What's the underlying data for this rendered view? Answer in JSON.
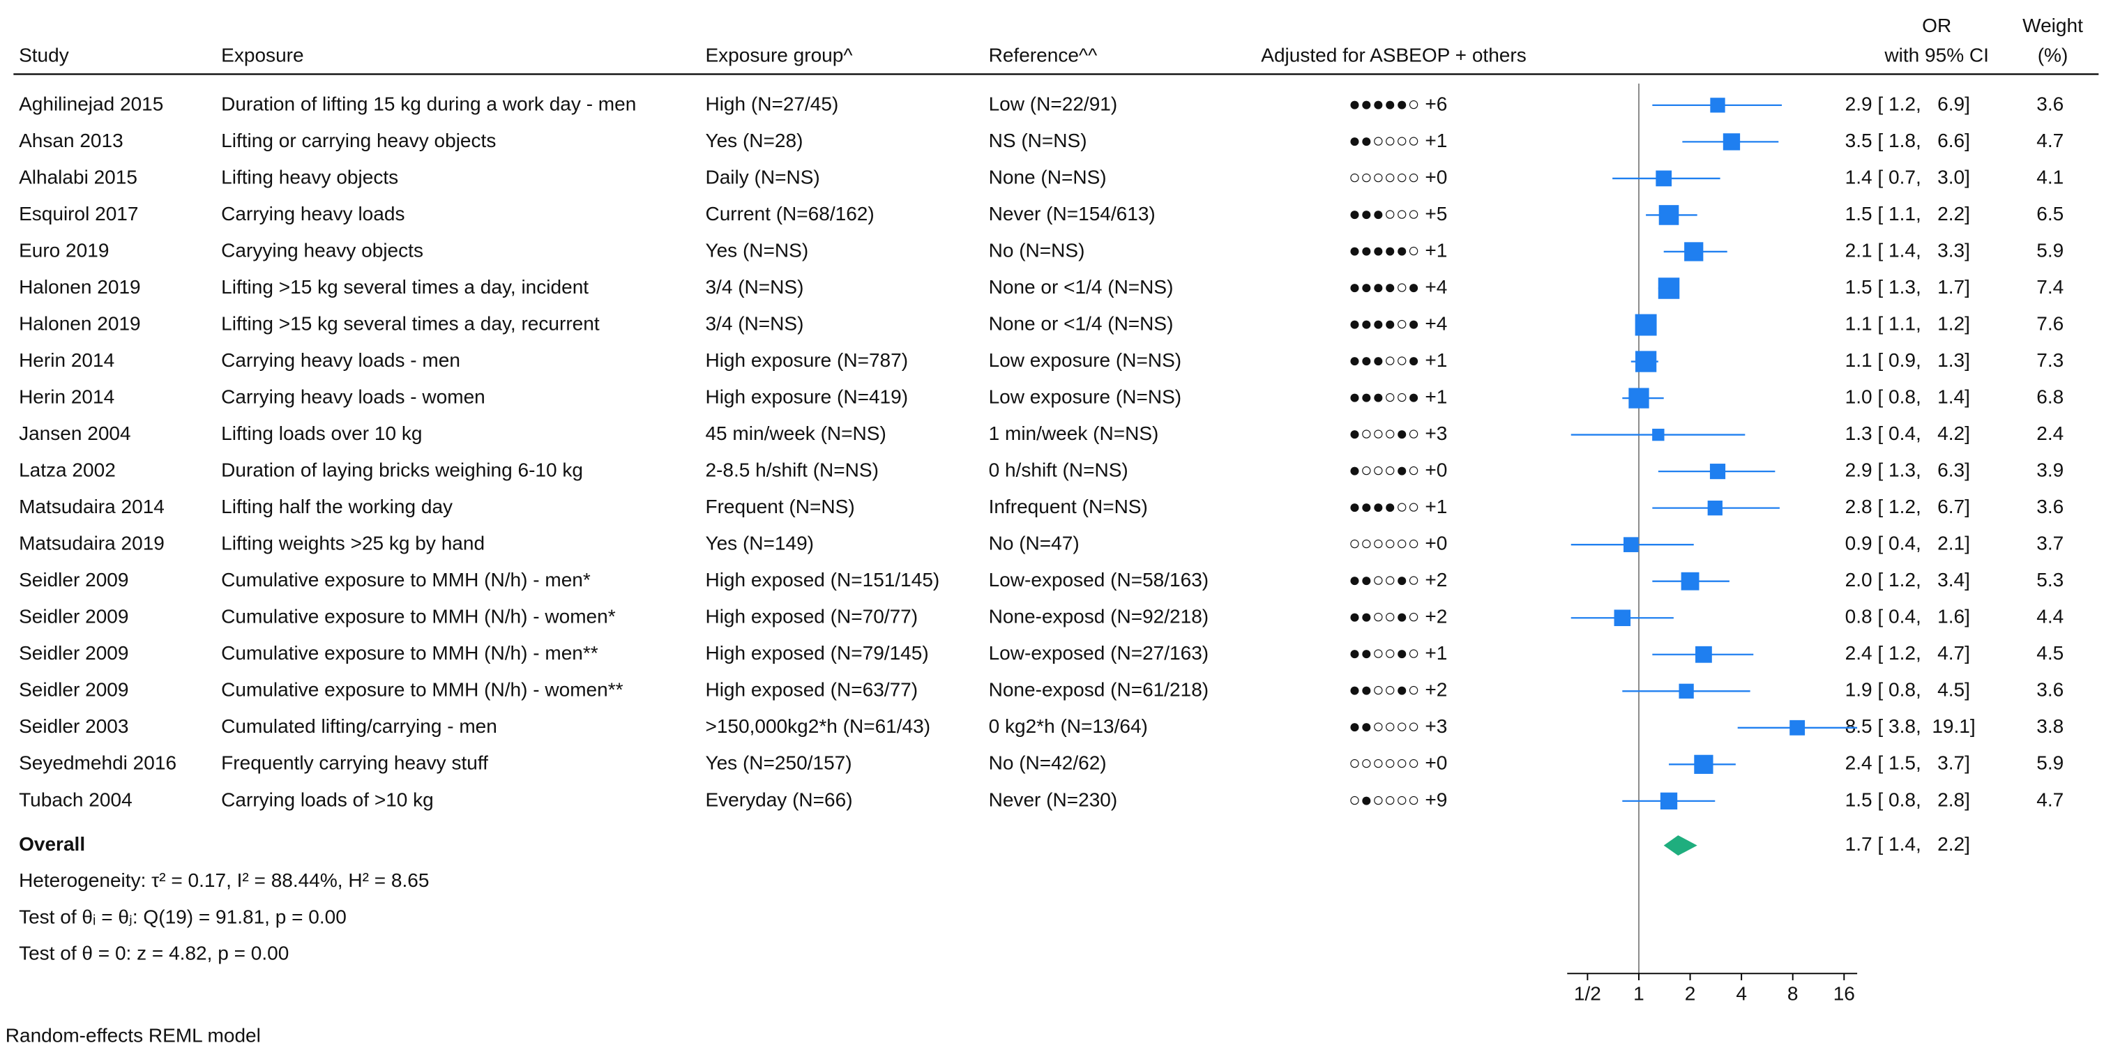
{
  "chart_data": {
    "type": "forest",
    "columns": {
      "study": "Study",
      "exposure": "Exposure",
      "group": "Exposure group^",
      "reference": "Reference^^",
      "adjusted": "Adjusted for ASBEOP + others",
      "or_top": "OR",
      "or_bottom": "with 95% CI",
      "weight_top": "Weight",
      "weight_bottom": "(%)"
    },
    "color": "#1f7ff0",
    "overall_color": "#1fae7e",
    "log_x": true,
    "reference_line": 1,
    "xlim": [
      0.38,
      19.1
    ],
    "xticks": [
      {
        "value": 0.5,
        "label": "1/2"
      },
      1,
      2,
      4,
      8,
      16
    ],
    "rows": [
      {
        "study": "Aghilinejad 2015",
        "exposure": "Duration of lifting 15 kg during a work day - men",
        "group": "High (N=27/45)",
        "reference": "Low (N=22/91)",
        "adjusted": "●●●●●○ +6",
        "or": 2.9,
        "lo": 1.2,
        "hi": 6.9,
        "ci_label": "2.9 [ 1.2,   6.9]",
        "weight": 3.6
      },
      {
        "study": "Ahsan 2013",
        "exposure": "Lifting or carrying heavy objects",
        "group": "Yes (N=28)",
        "reference": "NS (N=NS)",
        "adjusted": "●●○○○○ +1",
        "or": 3.5,
        "lo": 1.8,
        "hi": 6.6,
        "ci_label": "3.5 [ 1.8,   6.6]",
        "weight": 4.7
      },
      {
        "study": "Alhalabi 2015",
        "exposure": "Lifting heavy objects",
        "group": "Daily (N=NS)",
        "reference": "None (N=NS)",
        "adjusted": "○○○○○○ +0",
        "or": 1.4,
        "lo": 0.7,
        "hi": 3.0,
        "ci_label": "1.4 [ 0.7,   3.0]",
        "weight": 4.1
      },
      {
        "study": "Esquirol 2017",
        "exposure": "Carrying heavy loads",
        "group": "Current (N=68/162)",
        "reference": "Never (N=154/613)",
        "adjusted": "●●●○○○ +5",
        "or": 1.5,
        "lo": 1.1,
        "hi": 2.2,
        "ci_label": "1.5 [ 1.1,   2.2]",
        "weight": 6.5
      },
      {
        "study": "Euro 2019",
        "exposure": "Caryying heavy objects",
        "group": "Yes (N=NS)",
        "reference": "No (N=NS)",
        "adjusted": "●●●●●○ +1",
        "or": 2.1,
        "lo": 1.4,
        "hi": 3.3,
        "ci_label": "2.1 [ 1.4,   3.3]",
        "weight": 5.9
      },
      {
        "study": "Halonen 2019",
        "exposure": "Lifting >15 kg several times a day, incident",
        "group": "3/4 (N=NS)",
        "reference": "None or <1/4 (N=NS)",
        "adjusted": "●●●●○● +4",
        "or": 1.5,
        "lo": 1.3,
        "hi": 1.7,
        "ci_label": "1.5 [ 1.3,   1.7]",
        "weight": 7.4
      },
      {
        "study": "Halonen 2019",
        "exposure": "Lifting >15 kg several times a day, recurrent",
        "group": "3/4 (N=NS)",
        "reference": "None or <1/4 (N=NS)",
        "adjusted": "●●●●○● +4",
        "or": 1.1,
        "lo": 1.1,
        "hi": 1.2,
        "ci_label": "1.1 [ 1.1,   1.2]",
        "weight": 7.6
      },
      {
        "study": "Herin 2014",
        "exposure": "Carrying heavy loads - men",
        "group": "High exposure (N=787)",
        "reference": "Low exposure (N=NS)",
        "adjusted": "●●●○○● +1",
        "or": 1.1,
        "lo": 0.9,
        "hi": 1.3,
        "ci_label": "1.1 [ 0.9,   1.3]",
        "weight": 7.3
      },
      {
        "study": "Herin 2014",
        "exposure": "Carrying heavy loads - women",
        "group": "High exposure (N=419)",
        "reference": "Low exposure (N=NS)",
        "adjusted": "●●●○○● +1",
        "or": 1.0,
        "lo": 0.8,
        "hi": 1.4,
        "ci_label": "1.0 [ 0.8,   1.4]",
        "weight": 6.8
      },
      {
        "study": "Jansen 2004",
        "exposure": "Lifting loads over 10 kg",
        "group": "45 min/week (N=NS)",
        "reference": "1 min/week (N=NS)",
        "adjusted": "●○○○●○ +3",
        "or": 1.3,
        "lo": 0.4,
        "hi": 4.2,
        "ci_label": "1.3 [ 0.4,   4.2]",
        "weight": 2.4
      },
      {
        "study": "Latza 2002",
        "exposure": "Duration of laying bricks weighing 6-10 kg",
        "group": "2-8.5 h/shift (N=NS)",
        "reference": "0 h/shift (N=NS)",
        "adjusted": "●○○○●○ +0",
        "or": 2.9,
        "lo": 1.3,
        "hi": 6.3,
        "ci_label": "2.9 [ 1.3,   6.3]",
        "weight": 3.9
      },
      {
        "study": "Matsudaira 2014",
        "exposure": "Lifting half the working day",
        "group": "Frequent (N=NS)",
        "reference": "Infrequent (N=NS)",
        "adjusted": "●●●●○○ +1",
        "or": 2.8,
        "lo": 1.2,
        "hi": 6.7,
        "ci_label": "2.8 [ 1.2,   6.7]",
        "weight": 3.6
      },
      {
        "study": "Matsudaira 2019",
        "exposure": "Lifting weights >25 kg by hand",
        "group": "Yes (N=149)",
        "reference": "No (N=47)",
        "adjusted": "○○○○○○ +0",
        "or": 0.9,
        "lo": 0.4,
        "hi": 2.1,
        "ci_label": "0.9 [ 0.4,   2.1]",
        "weight": 3.7
      },
      {
        "study": "Seidler 2009",
        "exposure": "Cumulative exposure to MMH (N/h) - men*",
        "group": "High exposed (N=151/145)",
        "reference": "Low-exposed (N=58/163)",
        "adjusted": "●●○○●○ +2",
        "or": 2.0,
        "lo": 1.2,
        "hi": 3.4,
        "ci_label": "2.0 [ 1.2,   3.4]",
        "weight": 5.3
      },
      {
        "study": "Seidler 2009",
        "exposure": "Cumulative exposure to MMH (N/h) - women*",
        "group": "High exposed (N=70/77)",
        "reference": "None-exposd (N=92/218)",
        "adjusted": "●●○○●○ +2",
        "or": 0.8,
        "lo": 0.4,
        "hi": 1.6,
        "ci_label": "0.8 [ 0.4,   1.6]",
        "weight": 4.4
      },
      {
        "study": "Seidler 2009",
        "exposure": "Cumulative exposure to MMH (N/h) - men**",
        "group": "High exposed (N=79/145)",
        "reference": "Low-exposed (N=27/163)",
        "adjusted": "●●○○●○ +1",
        "or": 2.4,
        "lo": 1.2,
        "hi": 4.7,
        "ci_label": "2.4 [ 1.2,   4.7]",
        "weight": 4.5
      },
      {
        "study": "Seidler 2009",
        "exposure": "Cumulative exposure to MMH (N/h) - women**",
        "group": "High exposed (N=63/77)",
        "reference": "None-exposd (N=61/218)",
        "adjusted": "●●○○●○ +2",
        "or": 1.9,
        "lo": 0.8,
        "hi": 4.5,
        "ci_label": "1.9 [ 0.8,   4.5]",
        "weight": 3.6
      },
      {
        "study": "Seidler 2003",
        "exposure": "Cumulated lifting/carrying - men",
        "group": ">150,000kg2*h (N=61/43)",
        "reference": "0 kg2*h (N=13/64)",
        "adjusted": "●●○○○○ +3",
        "or": 8.5,
        "lo": 3.8,
        "hi": 19.1,
        "ci_label": "8.5 [ 3.8,  19.1]",
        "weight": 3.8
      },
      {
        "study": "Seyedmehdi 2016",
        "exposure": "Frequently carrying heavy stuff",
        "group": "Yes (N=250/157)",
        "reference": "No (N=42/62)",
        "adjusted": "○○○○○○ +0",
        "or": 2.4,
        "lo": 1.5,
        "hi": 3.7,
        "ci_label": "2.4 [ 1.5,   3.7]",
        "weight": 5.9
      },
      {
        "study": "Tubach 2004",
        "exposure": "Carrying loads of >10 kg",
        "group": "Everyday (N=66)",
        "reference": "Never (N=230)",
        "adjusted": "○●○○○○ +9",
        "or": 1.5,
        "lo": 0.8,
        "hi": 2.8,
        "ci_label": "1.5 [ 0.8,   2.8]",
        "weight": 4.7
      }
    ],
    "overall": {
      "name": "Overall",
      "or": 1.7,
      "lo": 1.4,
      "hi": 2.2,
      "ci_label": "1.7 [ 1.4,   2.2]"
    },
    "stats": [
      "Heterogeneity: τ² = 0.17, I² = 88.44%, H² = 8.65",
      "Test of θᵢ = θⱼ: Q(19) = 91.81, p = 0.00",
      "Test of θ = 0: z = 4.82, p = 0.00"
    ],
    "footnote": "Random-effects REML model"
  }
}
